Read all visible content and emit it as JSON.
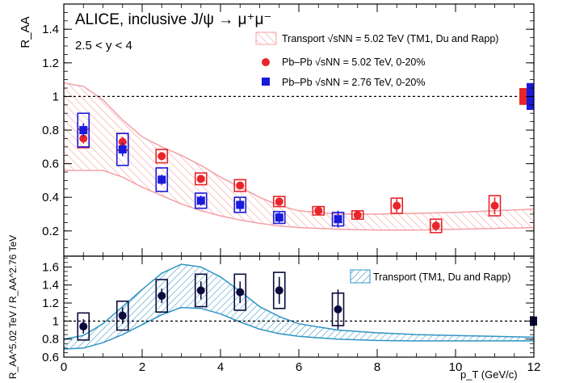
{
  "chart_data": [
    {
      "type": "scatter",
      "panel": "top",
      "ylabel": "R_AA",
      "xlim": [
        0,
        12
      ],
      "ylim": [
        0.05,
        1.55
      ],
      "yticks": [
        0.2,
        0.4,
        0.6,
        0.8,
        1,
        1.2,
        1.4
      ],
      "reference_line": 1,
      "title_line1": "ALICE, inclusive J/ψ → μ⁺μ⁻",
      "title_line2": "2.5 < y < 4",
      "legend": {
        "placement": "top-right",
        "transport_label": "Transport √sNN = 5.02 TeV (TM1, Du and Rapp)",
        "red_label": "Pb–Pb √sNN = 5.02 TeV, 0-20%",
        "blue_label": "Pb–Pb √sNN = 2.76 TeV, 0-20%"
      },
      "band": {
        "name": "Transport",
        "x": [
          0,
          0.5,
          1,
          1.5,
          2,
          2.5,
          3,
          3.5,
          4,
          4.5,
          5,
          5.5,
          6,
          7,
          8,
          9,
          10,
          11,
          12
        ],
        "lo": [
          0.56,
          0.56,
          0.56,
          0.52,
          0.46,
          0.41,
          0.36,
          0.32,
          0.29,
          0.265,
          0.245,
          0.23,
          0.22,
          0.21,
          0.205,
          0.205,
          0.21,
          0.215,
          0.22
        ],
        "hi": [
          1.08,
          1.06,
          0.98,
          0.86,
          0.76,
          0.7,
          0.65,
          0.59,
          0.52,
          0.46,
          0.4,
          0.35,
          0.32,
          0.3,
          0.3,
          0.305,
          0.31,
          0.32,
          0.33
        ]
      },
      "series": [
        {
          "name": "Pb–Pb 5.02 TeV",
          "color": "#e8252a",
          "marker": "circle",
          "x": [
            0.5,
            1.5,
            2.5,
            3.5,
            4.5,
            5.5,
            6.5,
            7.5,
            8.5,
            9.5,
            11
          ],
          "y": [
            0.75,
            0.73,
            0.645,
            0.51,
            0.47,
            0.375,
            0.32,
            0.295,
            0.35,
            0.23,
            0.35
          ],
          "stat": [
            0.03,
            0.03,
            0.02,
            0.02,
            0.02,
            0.02,
            0.02,
            0.02,
            0.04,
            0.03,
            0.05
          ],
          "sys": [
            0.055,
            0.05,
            0.04,
            0.035,
            0.035,
            0.03,
            0.025,
            0.025,
            0.045,
            0.04,
            0.06
          ]
        },
        {
          "name": "Pb–Pb 2.76 TeV",
          "color": "#1a1adb",
          "marker": "square",
          "x": [
            0.5,
            1.5,
            2.5,
            3.5,
            4.5,
            5.5,
            7
          ],
          "y": [
            0.8,
            0.685,
            0.505,
            0.38,
            0.355,
            0.28,
            0.27
          ],
          "stat": [
            0.04,
            0.04,
            0.03,
            0.03,
            0.04,
            0.03,
            0.05
          ],
          "sys": [
            0.1,
            0.095,
            0.07,
            0.045,
            0.045,
            0.035,
            0.04
          ]
        }
      ],
      "global_uncertainty": [
        {
          "name": "5.02 TeV",
          "color": "#e8252a",
          "value": 0.05
        },
        {
          "name": "2.76 TeV",
          "color": "#1a1adb",
          "value": 0.08
        }
      ]
    },
    {
      "type": "scatter",
      "panel": "bottom",
      "ylabel": "R_AA^5.02 TeV / R_AA^2.76 TeV",
      "xlabel": "p_T (GeV/c)",
      "xlim": [
        0,
        12
      ],
      "xticks": [
        0,
        2,
        4,
        6,
        8,
        10,
        12
      ],
      "ylim": [
        0.6,
        1.72
      ],
      "yticks": [
        0.6,
        0.8,
        1,
        1.2,
        1.4,
        1.6
      ],
      "reference_line": 1,
      "legend": {
        "placement": "top-right",
        "transport_label": "Transport (TM1, Du and Rapp)"
      },
      "band": {
        "name": "Transport",
        "x": [
          0,
          0.5,
          1,
          1.5,
          2,
          2.5,
          3,
          3.5,
          4,
          4.5,
          5,
          5.5,
          6,
          7,
          8,
          9,
          10,
          11,
          12
        ],
        "lo": [
          0.69,
          0.7,
          0.76,
          0.85,
          0.96,
          1.07,
          1.15,
          1.14,
          1.08,
          0.99,
          0.91,
          0.86,
          0.83,
          0.8,
          0.785,
          0.78,
          0.78,
          0.78,
          0.78
        ],
        "hi": [
          0.8,
          0.84,
          0.97,
          1.16,
          1.35,
          1.53,
          1.63,
          1.6,
          1.49,
          1.33,
          1.16,
          1.05,
          0.97,
          0.9,
          0.87,
          0.85,
          0.84,
          0.83,
          0.82
        ]
      },
      "series": [
        {
          "name": "Ratio",
          "color": "#0a0a3c",
          "marker": "circle",
          "x": [
            0.5,
            1.5,
            2.5,
            3.5,
            4.5,
            5.5,
            7
          ],
          "y": [
            0.94,
            1.06,
            1.28,
            1.34,
            1.32,
            1.34,
            1.13
          ],
          "stat": [
            0.08,
            0.09,
            0.08,
            0.1,
            0.12,
            0.15,
            0.22
          ],
          "sys": [
            0.15,
            0.16,
            0.18,
            0.18,
            0.2,
            0.2,
            0.18
          ]
        }
      ],
      "global_uncertainty": [
        {
          "name": "Ratio",
          "color": "#0a0a3c",
          "value": 0.05
        }
      ]
    }
  ]
}
